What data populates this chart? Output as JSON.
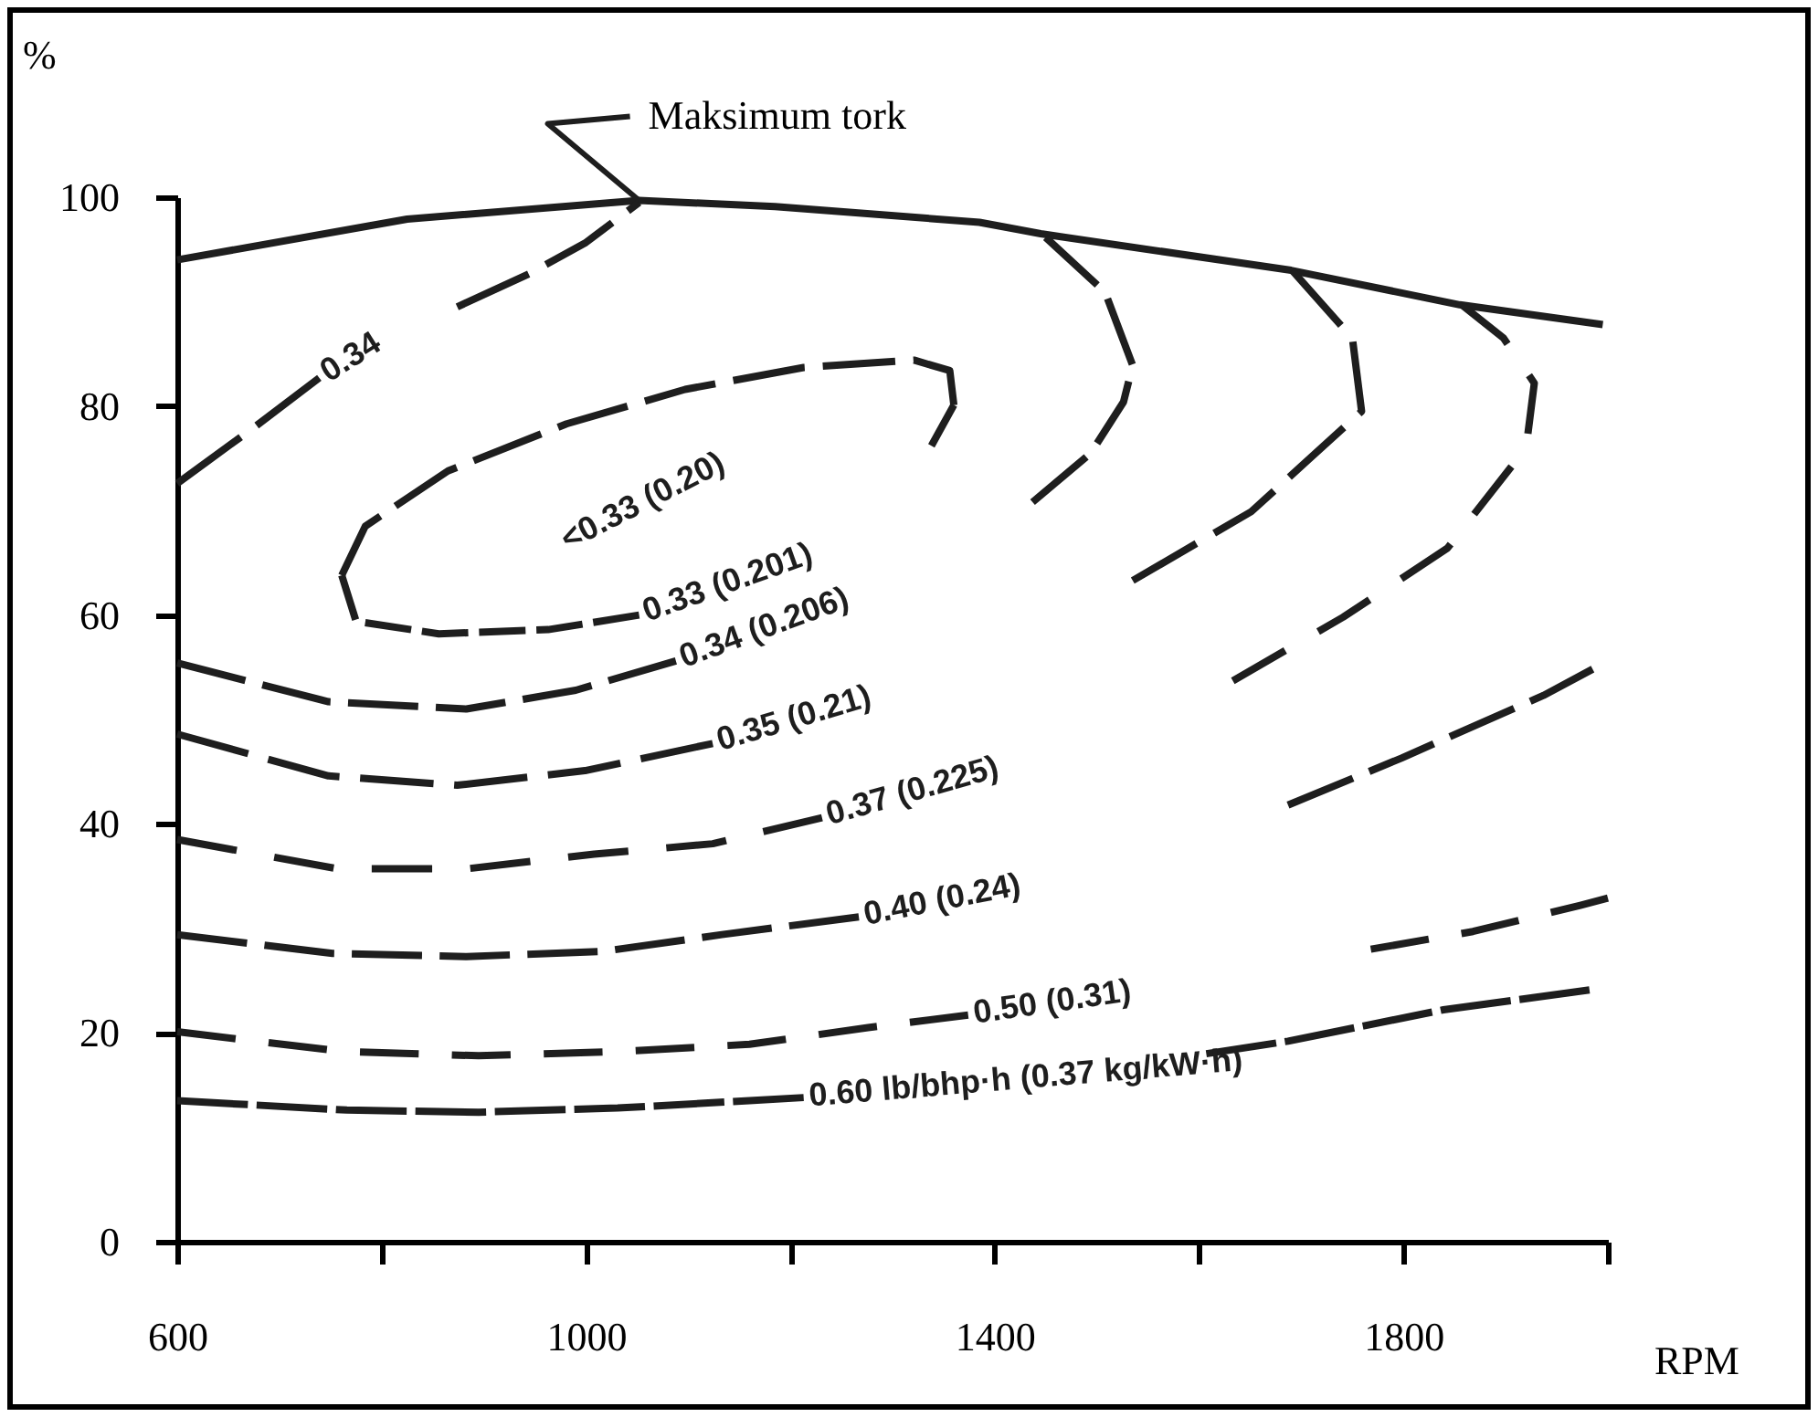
{
  "chart_data": {
    "type": "line",
    "xlabel": "RPM",
    "ylabel": "%",
    "xlim": [
      600,
      2000
    ],
    "ylim": [
      0,
      100
    ],
    "xticks": [
      600,
      {
        "value": 800,
        "label": null
      },
      1000,
      {
        "value": 1200,
        "label": null
      },
      1400,
      {
        "value": 1600,
        "label": null
      },
      1800,
      {
        "value": 2000,
        "label": null
      }
    ],
    "yticks": [
      0,
      20,
      40,
      60,
      80,
      100
    ],
    "line_style": "dashed",
    "annotations": [
      {
        "text": "Maksimum tork",
        "x": 1052,
        "y": 99.7
      },
      "<0.33 (0.20)"
    ],
    "series": [
      {
        "color": "#1e1e1e",
        "line_style": "solid",
        "x": [
          600,
          825,
          1052,
          1185,
          1385,
          1445,
          1690,
          1855,
          1995
        ],
        "values": [
          94,
          97.9,
          99.7,
          99.1,
          97.6,
          96.5,
          93,
          89.7,
          87.8
        ]
      },
      {
        "name": "0.34",
        "color": "#1e1e1e",
        "x": [
          600,
          677,
          739,
          811,
          874,
          945,
          999,
          1052
        ],
        "values": [
          72.6,
          78.1,
          82.7,
          null,
          89.5,
          92.7,
          95.6,
          99.5
        ]
      },
      {
        "color": "#1e1e1e",
        "x": [
          761,
          784,
          865,
          981,
          1097,
          1213,
          1321,
          1356,
          1360
        ],
        "values": [
          63.8,
          68.5,
          73.8,
          78.3,
          81.6,
          83.7,
          84.4,
          83.4,
          80.1
        ]
      },
      {
        "name": "0.33 (0.201)",
        "color": "#1e1e1e",
        "x": [
          761,
          775,
          856,
          963,
          1052,
          1205,
          1338,
          1360
        ],
        "values": [
          63.8,
          59.4,
          58.2,
          58.6,
          60,
          null,
          76.2,
          80.1
        ]
      },
      {
        "name": "0.34 (0.206)",
        "color": "#1e1e1e",
        "x": [
          600,
          748,
          883,
          990,
          1088,
          1285,
          1437,
          1494,
          1526,
          1535,
          1508,
          1446
        ],
        "values": [
          55.4,
          51.7,
          51,
          52.8,
          55.6,
          null,
          70.8,
          75.5,
          80.4,
          83.9,
          90.9,
          96.5
        ]
      },
      {
        "name": "0.35 (0.21)",
        "color": "#1e1e1e",
        "x": [
          600,
          748,
          874,
          999,
          1124,
          1347,
          1535,
          1651,
          1759,
          1750,
          1691
        ],
        "values": [
          48.6,
          44.6,
          43.7,
          45.1,
          47.7,
          null,
          63.3,
          69.9,
          79.5,
          86.5,
          93
        ]
      },
      {
        "name": "0.37 (0.225)",
        "color": "#1e1e1e",
        "x": [
          600,
          757,
          883,
          1008,
          1124,
          1231,
          1428,
          1633,
          1741,
          1843,
          1920,
          1928,
          1898,
          1857
        ],
        "values": [
          38.5,
          35.7,
          35.7,
          37.1,
          38.1,
          40.6,
          null,
          53.7,
          59.8,
          66.4,
          76,
          82.2,
          86.5,
          89.7
        ]
      },
      {
        "name": "0.40 (0.24)",
        "color": "#1e1e1e",
        "x": [
          600,
          752,
          883,
          1017,
          1133,
          1267,
          1481,
          1687,
          1798,
          1937,
          2000
        ],
        "values": [
          29.4,
          27.6,
          27.3,
          27.8,
          29.4,
          31.1,
          null,
          41.8,
          46.3,
          52.3,
          55.6
        ]
      },
      {
        "name": "0.50 (0.31)",
        "color": "#1e1e1e",
        "x": [
          600,
          763,
          895,
          1031,
          1160,
          1276,
          1374,
          1553,
          1768,
          1868,
          1973,
          2000
        ],
        "values": [
          20.1,
          18.2,
          17.8,
          18.2,
          18.9,
          20.5,
          21.7,
          null,
          28,
          29.7,
          32.2,
          32.9
        ]
      },
      {
        "name": "0.60 lb/bhp·h (0.37 kg/kW·h)",
        "color": "#1e1e1e",
        "x": [
          600,
          766,
          895,
          1031,
          1160,
          1213,
          1410,
          1607,
          1687,
          1839,
          1982
        ],
        "values": [
          13.5,
          12.6,
          12.4,
          12.8,
          13.5,
          13.8,
          null,
          18,
          19.2,
          22.2,
          24.1
        ]
      }
    ]
  }
}
